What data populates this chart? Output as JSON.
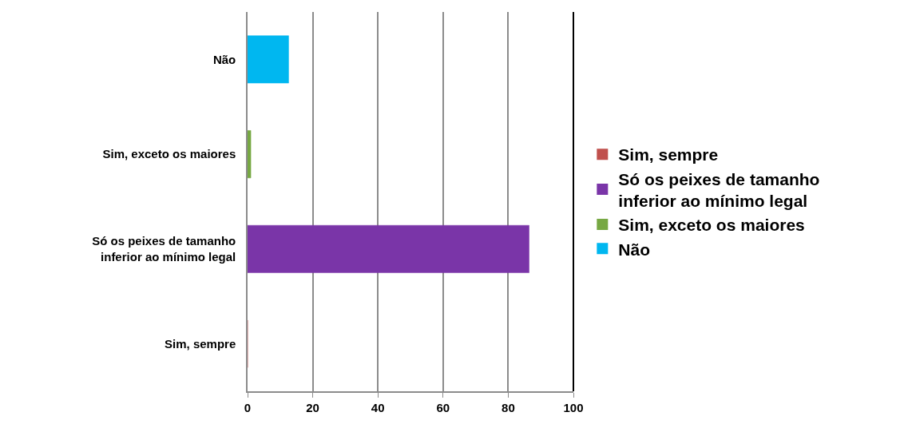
{
  "chart_data": {
    "type": "bar",
    "orientation": "horizontal",
    "stacked": true,
    "categories": [
      "Não",
      "Sim, exceto os maiores",
      "Só os peixes de tamanho inferior ao mínimo legal",
      "Sim, sempre"
    ],
    "series": [
      {
        "name": "Sim, sempre",
        "color": "#c0504d",
        "values": [
          null,
          null,
          null,
          0
        ]
      },
      {
        "name": "Só os peixes de tamanho inferior ao mínimo legal",
        "color": "#7a35a8",
        "values": [
          null,
          null,
          86.4,
          null
        ]
      },
      {
        "name": "Sim, exceto os maiores",
        "color": "#77a843",
        "values": [
          null,
          1.0,
          null,
          null
        ]
      },
      {
        "name": "Não",
        "color": "#00b7f0",
        "values": [
          12.6,
          null,
          null,
          null
        ]
      }
    ],
    "xlim": [
      0,
      100
    ],
    "xticks": [
      0,
      20,
      40,
      60,
      80,
      100
    ],
    "grid": "x",
    "legend": "right"
  }
}
